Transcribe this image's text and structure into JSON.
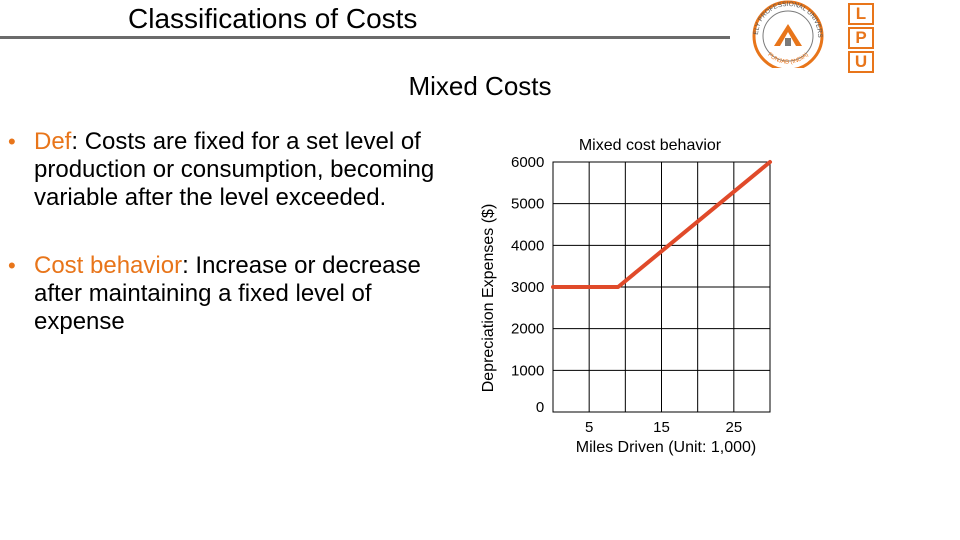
{
  "header": {
    "title": "Classifications of Costs",
    "logo_letters": [
      "L",
      "P",
      "U"
    ],
    "seal_top_text": "LOVELY PROFESSIONAL UNIVERSITY",
    "seal_bottom_text": "PUNJAB (INDIA)"
  },
  "subtitle": "Mixed Costs",
  "bullets": [
    {
      "term": "Def",
      "text": ": Costs are fixed for a set level of production or consumption, becoming variable after the level exceeded."
    },
    {
      "term": "Cost behavior",
      "text": ": Increase or decrease after maintaining a fixed level of expense"
    }
  ],
  "colors": {
    "accent": "#e8751a",
    "line": "#e04a2a",
    "grid": "#000000",
    "rule": "#6b6b6b"
  },
  "chart_data": {
    "type": "line",
    "title": "Mixed cost behavior",
    "xlabel": "Miles Driven (Unit: 1,000)",
    "ylabel": "Depreciation Expenses ($)",
    "x_tick_labels": [
      "5",
      "15",
      "25"
    ],
    "x_tick_values": [
      5,
      15,
      25
    ],
    "y_tick_labels": [
      "0",
      "1000",
      "2000",
      "3000",
      "4000",
      "5000",
      "6000"
    ],
    "xlim": [
      0,
      30
    ],
    "ylim": [
      0,
      6000
    ],
    "series": [
      {
        "name": "Mixed cost",
        "x": [
          0,
          9,
          30
        ],
        "y": [
          3000,
          3000,
          6000
        ]
      }
    ]
  }
}
